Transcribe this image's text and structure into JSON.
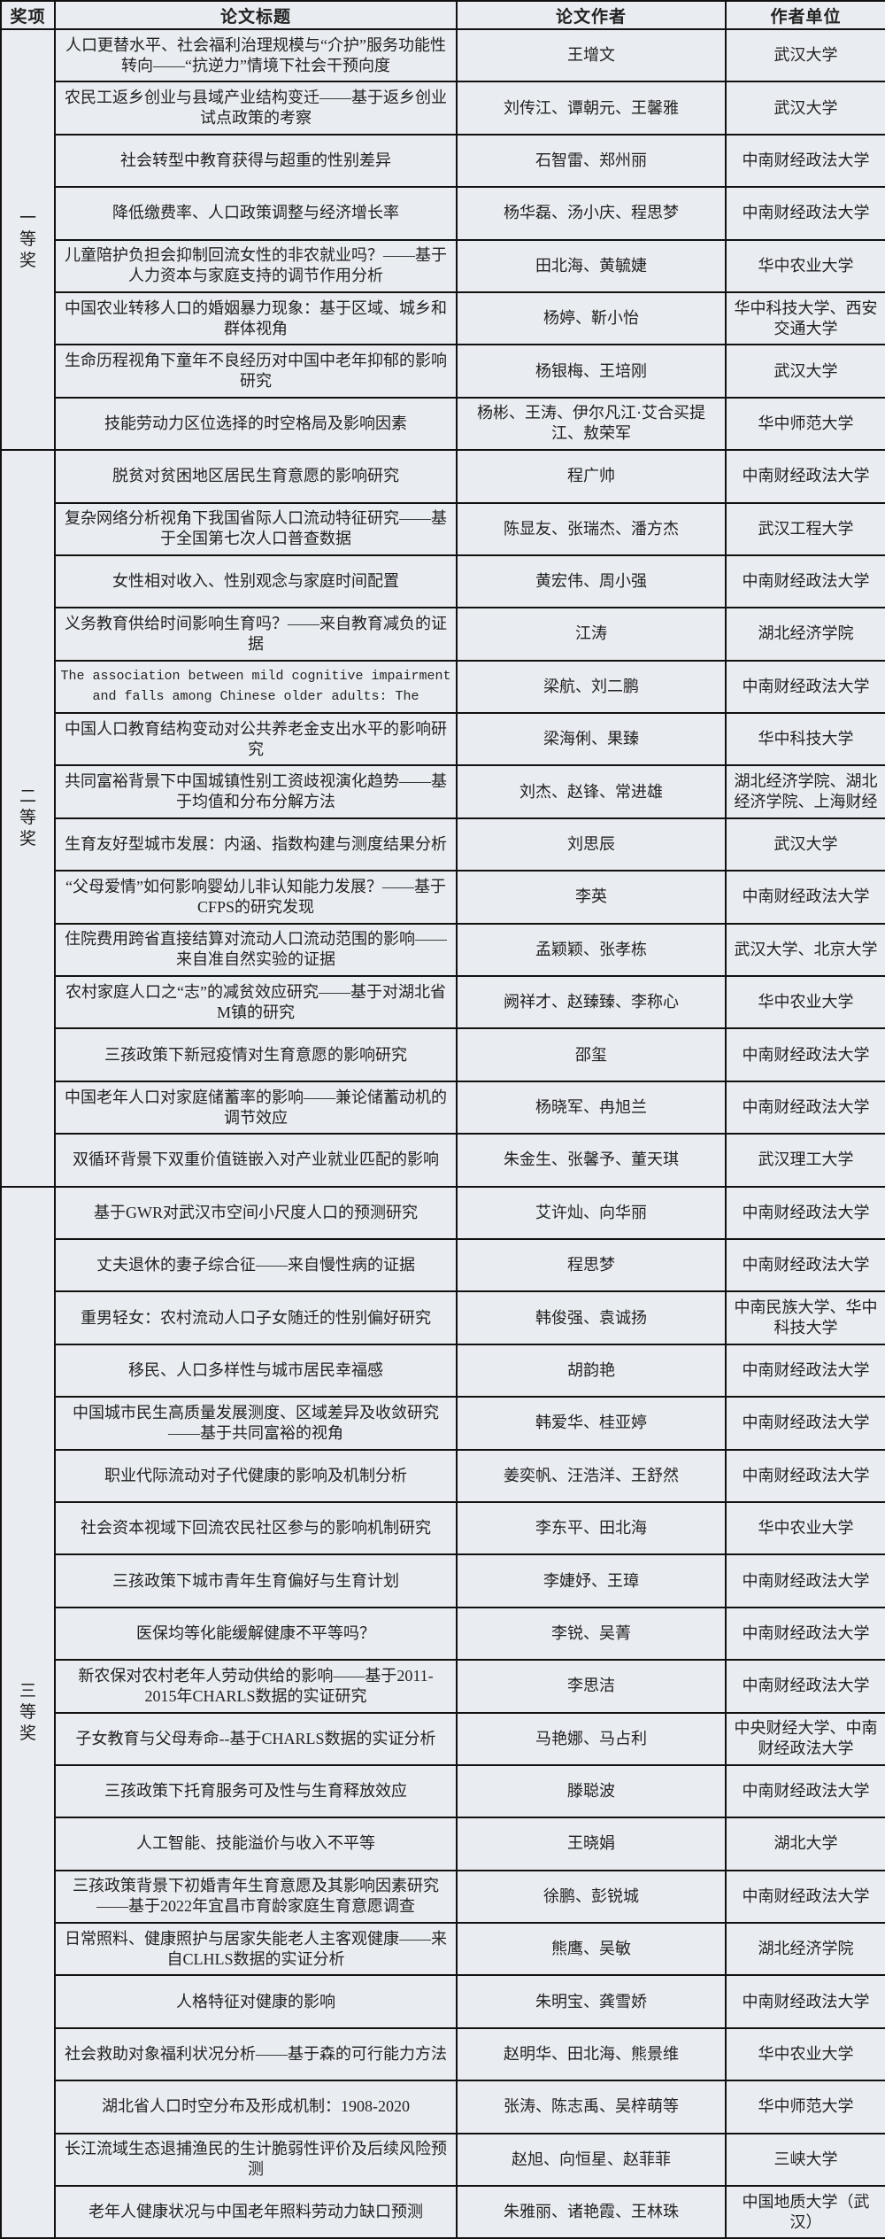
{
  "header": {
    "award": "奖项",
    "title": "论文标题",
    "authors": "论文作者",
    "affiliation": "作者单位"
  },
  "groups": [
    {
      "award": "一等奖",
      "rows": [
        {
          "title": "人口更替水平、社会福利治理规模与“介护”服务功能性转向——“抗逆力”情境下社会干预向度",
          "authors": "王增文",
          "affiliation": "武汉大学"
        },
        {
          "title": "农民工返乡创业与县域产业结构变迁——基于返乡创业试点政策的考察",
          "authors": "刘传江、谭朝元、王馨雅",
          "affiliation": "武汉大学"
        },
        {
          "title": "社会转型中教育获得与超重的性别差异",
          "authors": "石智雷、郑州丽",
          "affiliation": "中南财经政法大学"
        },
        {
          "title": "降低缴费率、人口政策调整与经济增长率",
          "authors": "杨华磊、汤小庆、程思梦",
          "affiliation": "中南财经政法大学"
        },
        {
          "title": "儿童陪护负担会抑制回流女性的非农就业吗？——基于人力资本与家庭支持的调节作用分析",
          "authors": "田北海、黄毓婕",
          "affiliation": "华中农业大学"
        },
        {
          "title": "中国农业转移人口的婚姻暴力现象：基于区域、城乡和群体视角",
          "authors": "杨婷、靳小怡",
          "affiliation": "华中科技大学、西安交通大学"
        },
        {
          "title": "生命历程视角下童年不良经历对中国中老年抑郁的影响研究",
          "authors": "杨银梅、王培刚",
          "affiliation": "武汉大学"
        },
        {
          "title": "技能劳动力区位选择的时空格局及影响因素",
          "authors": "杨彬、王涛、伊尔凡江·艾合买提江、敖荣军",
          "affiliation": "华中师范大学"
        }
      ]
    },
    {
      "award": "二等奖",
      "rows": [
        {
          "title": "脱贫对贫困地区居民生育意愿的影响研究",
          "authors": "程广帅",
          "affiliation": "中南财经政法大学"
        },
        {
          "title": "复杂网络分析视角下我国省际人口流动特征研究——基于全国第七次人口普查数据",
          "authors": "陈显友、张瑞杰、潘方杰",
          "affiliation": "武汉工程大学"
        },
        {
          "title": "女性相对收入、性别观念与家庭时间配置",
          "authors": "黄宏伟、周小强",
          "affiliation": "中南财经政法大学"
        },
        {
          "title": "义务教育供给时间影响生育吗？——来自教育减负的证据",
          "authors": "江涛",
          "affiliation": "湖北经济学院"
        },
        {
          "title": "The association between mild cognitive impairment and falls among Chinese older adults: The",
          "authors": "梁航、刘二鹏",
          "affiliation": "中南财经政法大学",
          "english": true
        },
        {
          "title": "中国人口教育结构变动对公共养老金支出水平的影响研究",
          "authors": "梁海俐、果臻",
          "affiliation": "华中科技大学"
        },
        {
          "title": "共同富裕背景下中国城镇性别工资歧视演化趋势——基于均值和分布分解方法",
          "authors": "刘杰、赵锋、常进雄",
          "affiliation": "湖北经济学院、湖北经济学院、上海财经大学"
        },
        {
          "title": "生育友好型城市发展：内涵、指数构建与测度结果分析",
          "authors": "刘思辰",
          "affiliation": "武汉大学"
        },
        {
          "title": "“父母爱情”如何影响婴幼儿非认知能力发展？——基于CFPS的研究发现",
          "authors": "李英",
          "affiliation": "中南财经政法大学"
        },
        {
          "title": "住院费用跨省直接结算对流动人口流动范围的影响——来自准自然实验的证据",
          "authors": "孟颖颖、张孝栋",
          "affiliation": "武汉大学、北京大学"
        },
        {
          "title": "农村家庭人口之“志”的减贫效应研究——基于对湖北省M镇的研究",
          "authors": "阙祥才、赵臻臻、李称心",
          "affiliation": "华中农业大学"
        },
        {
          "title": "三孩政策下新冠疫情对生育意愿的影响研究",
          "authors": "邵玺",
          "affiliation": "中南财经政法大学"
        },
        {
          "title": "中国老年人口对家庭储蓄率的影响——兼论储蓄动机的调节效应",
          "authors": "杨晓军、冉旭兰",
          "affiliation": "中南财经政法大学"
        },
        {
          "title": "双循环背景下双重价值链嵌入对产业就业匹配的影响",
          "authors": "朱金生、张馨予、董天琪",
          "affiliation": "武汉理工大学"
        }
      ]
    },
    {
      "award": "三等奖",
      "rows": [
        {
          "title": "基于GWR对武汉市空间小尺度人口的预测研究",
          "authors": "艾许灿、向华丽",
          "affiliation": "中南财经政法大学"
        },
        {
          "title": "丈夫退休的妻子综合征——来自慢性病的证据",
          "authors": "程思梦",
          "affiliation": "中南财经政法大学"
        },
        {
          "title": "重男轻女：农村流动人口子女随迁的性别偏好研究",
          "authors": "韩俊强、袁诚扬",
          "affiliation": "中南民族大学、华中科技大学"
        },
        {
          "title": "移民、人口多样性与城市居民幸福感",
          "authors": "胡韵艳",
          "affiliation": "中南财经政法大学"
        },
        {
          "title": "中国城市民生高质量发展测度、区域差异及收敛研究——基于共同富裕的视角",
          "authors": "韩爱华、桂亚婷",
          "affiliation": "中南财经政法大学"
        },
        {
          "title": "职业代际流动对子代健康的影响及机制分析",
          "authors": "姜奕帆、汪浩洋、王舒然",
          "affiliation": "中南财经政法大学"
        },
        {
          "title": "社会资本视域下回流农民社区参与的影响机制研究",
          "authors": "李东平、田北海",
          "affiliation": "华中农业大学"
        },
        {
          "title": "三孩政策下城市青年生育偏好与生育计划",
          "authors": "李婕妤、王璋",
          "affiliation": "中南财经政法大学"
        },
        {
          "title": "医保均等化能缓解健康不平等吗？",
          "authors": "李锐、吴菁",
          "affiliation": "中南财经政法大学"
        },
        {
          "title": "新农保对农村老年人劳动供给的影响——基于2011-2015年CHARLS数据的实证研究",
          "authors": "李思洁",
          "affiliation": "中南财经政法大学"
        },
        {
          "title": "子女教育与父母寿命--基于CHARLS数据的实证分析",
          "authors": "马艳娜、马占利",
          "affiliation": "中央财经大学、中南财经政法大学"
        },
        {
          "title": "三孩政策下托育服务可及性与生育释放效应",
          "authors": "滕聪波",
          "affiliation": "中南财经政法大学"
        },
        {
          "title": "人工智能、技能溢价与收入不平等",
          "authors": "王晓娟",
          "affiliation": "湖北大学"
        },
        {
          "title": "三孩政策背景下初婚青年生育意愿及其影响因素研究——基于2022年宜昌市育龄家庭生育意愿调查",
          "authors": "徐鹏、彭锐城",
          "affiliation": "中南财经政法大学"
        },
        {
          "title": "日常照料、健康照护与居家失能老人主客观健康——来自CLHLS数据的实证分析",
          "authors": "熊鹰、吴敏",
          "affiliation": "湖北经济学院"
        },
        {
          "title": "人格特征对健康的影响",
          "authors": "朱明宝、龚雪娇",
          "affiliation": "中南财经政法大学"
        },
        {
          "title": "社会救助对象福利状况分析——基于森的可行能力方法",
          "authors": "赵明华、田北海、熊景维",
          "affiliation": "华中农业大学"
        },
        {
          "title": "湖北省人口时空分布及形成机制：1908-2020",
          "authors": "张涛、陈志禹、吴梓萌等",
          "affiliation": "华中师范大学"
        },
        {
          "title": "长江流域生态退捕渔民的生计脆弱性评价及后续风险预测",
          "authors": "赵旭、向恒星、赵菲菲",
          "affiliation": "三峡大学"
        },
        {
          "title": "老年人健康状况与中国老年照料劳动力缺口预测",
          "authors": "朱雅丽、诸艳霞、王林珠",
          "affiliation": "中国地质大学（武汉）"
        }
      ]
    }
  ]
}
